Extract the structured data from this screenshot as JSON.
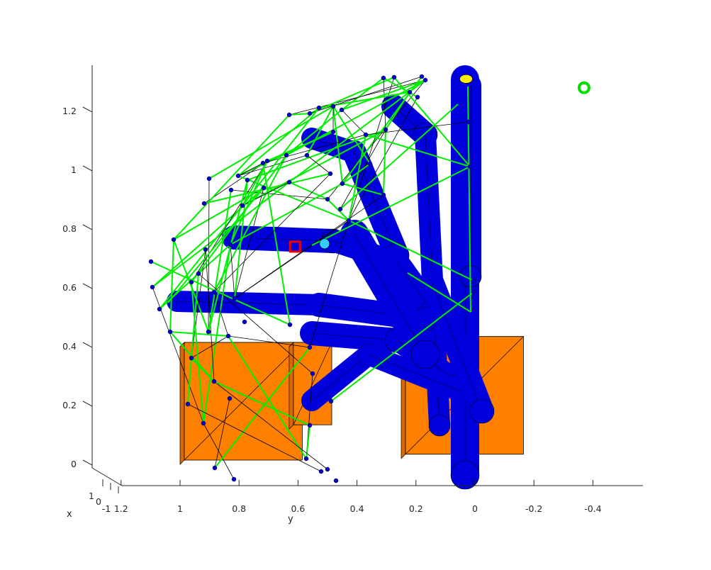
{
  "chart_data": {
    "type": "3d-scene",
    "title": "",
    "xlabel": "x",
    "ylabel": "y",
    "zlabel": "",
    "y_ticks": [
      "1.2",
      "1",
      "0.8",
      "0.6",
      "0.4",
      "0.2",
      "0",
      "-0.2",
      "-0.4"
    ],
    "y_tick_values": [
      1.2,
      1.0,
      0.8,
      0.6,
      0.4,
      0.2,
      0.0,
      -0.2,
      -0.4
    ],
    "z_ticks": [
      "0",
      "0.2",
      "0.4",
      "0.6",
      "0.8",
      "1",
      "1.2"
    ],
    "z_tick_values": [
      0.0,
      0.2,
      0.4,
      0.6,
      0.8,
      1.0,
      1.2
    ],
    "x_ticks": [
      "1",
      "0",
      "-1"
    ],
    "x_tick_values": [
      1,
      0,
      -1
    ],
    "grid": false,
    "legend": "none",
    "objects": {
      "boxes": [
        {
          "y": [
            0.6,
            1.0
          ],
          "z": [
            0.0,
            0.4
          ]
        },
        {
          "y": [
            0.5,
            0.63
          ],
          "z": [
            0.12,
            0.4
          ]
        },
        {
          "y": [
            -0.15,
            0.25
          ],
          "z": [
            0.02,
            0.42
          ]
        }
      ],
      "markers": [
        {
          "kind": "goal",
          "y": -0.37,
          "z": 1.28
        },
        {
          "kind": "target",
          "y": 0.61,
          "z": 0.74
        },
        {
          "kind": "tip",
          "y": 0.51,
          "z": 0.75
        },
        {
          "kind": "top",
          "y": 0.03,
          "z": 1.31
        }
      ]
    },
    "colors": {
      "arm": "#0000dd",
      "box": "#ff8000",
      "path": "#00ee00",
      "node": "#0000cc",
      "goal": "#00dd00",
      "target": "#ee0000",
      "tip": "#33ccff",
      "top": "#ffee00"
    }
  }
}
